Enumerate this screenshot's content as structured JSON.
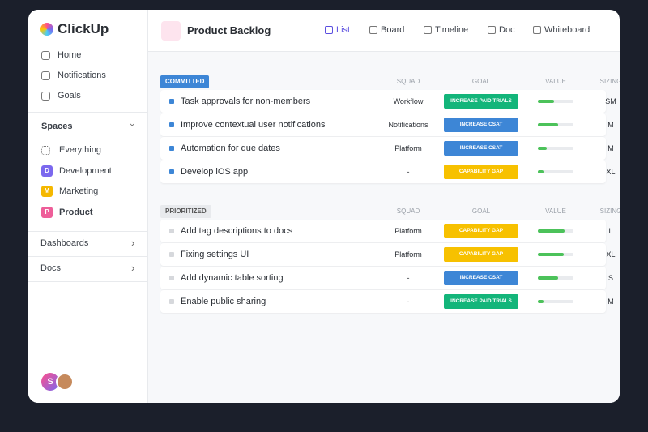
{
  "brand": "ClickUp",
  "sidebar": {
    "nav": [
      "Home",
      "Notifications",
      "Goals"
    ],
    "spaces_title": "Spaces",
    "spaces": [
      {
        "label": "Everything"
      },
      {
        "icon": "D",
        "label": "Development",
        "color": "#7b68ee"
      },
      {
        "icon": "M",
        "label": "Marketing",
        "color": "#f5b800"
      },
      {
        "icon": "P",
        "label": "Product",
        "color": "#ee5e99"
      }
    ],
    "sections": [
      "Dashboards",
      "Docs"
    ],
    "avatar": "S"
  },
  "header": {
    "title": "Product Backlog",
    "views": [
      "List",
      "Board",
      "Timeline",
      "Doc",
      "Whiteboard"
    ]
  },
  "groups": [
    {
      "name": "COMMITTED",
      "color": "#3d86d6",
      "columns": [
        "SQUAD",
        "GOAL",
        "VALUE",
        "SIZING"
      ],
      "rows": [
        {
          "task": "Task approvals for non-members",
          "squad": "Workflow",
          "goal": "INCREASE PAID TRIALS",
          "goal_color": "#13b57a",
          "value": 45,
          "sizing": "SM"
        },
        {
          "task": "Improve contextual user notifications",
          "squad": "Notifications",
          "goal": "INCREASE CSAT",
          "goal_color": "#3d86d6",
          "value": 57,
          "sizing": "M"
        },
        {
          "task": "Automation for due dates",
          "squad": "Platform",
          "goal": "INCREASE CSAT",
          "goal_color": "#3d86d6",
          "value": 25,
          "sizing": "M"
        },
        {
          "task": "Develop iOS app",
          "squad": "-",
          "goal": "CAPABILITY GAP",
          "goal_color": "#f7c100",
          "value": 16,
          "sizing": "XL"
        }
      ]
    },
    {
      "name": "PRIORITIZED",
      "color": "#e8eaed",
      "columns": [
        "SQUAD",
        "GOAL",
        "VALUE",
        "SIZING"
      ],
      "rows": [
        {
          "task": "Add tag descriptions to docs",
          "squad": "Platform",
          "goal": "CAPABILITY GAP",
          "goal_color": "#f7c100",
          "value": 75,
          "sizing": "L"
        },
        {
          "task": "Fixing settings UI",
          "squad": "Platform",
          "goal": "CAPABILITY GAP",
          "goal_color": "#f7c100",
          "value": 73,
          "sizing": "XL"
        },
        {
          "task": "Add dynamic table sorting",
          "squad": "-",
          "goal": "INCREASE CSAT",
          "goal_color": "#3d86d6",
          "value": 57,
          "sizing": "S"
        },
        {
          "task": "Enable public sharing",
          "squad": "-",
          "goal": "INCREASE PAID TRIALS",
          "goal_color": "#13b57a",
          "value": 16,
          "sizing": "M"
        }
      ]
    }
  ]
}
